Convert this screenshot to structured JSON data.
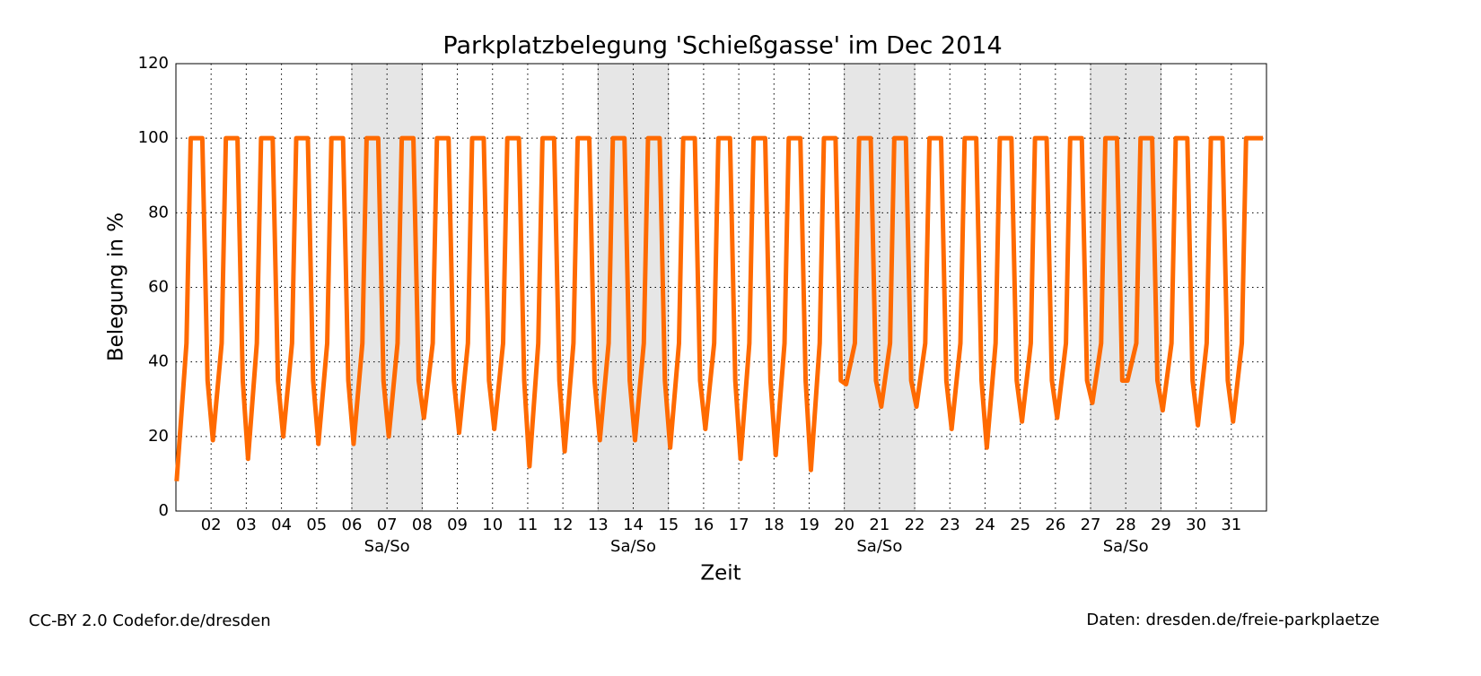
{
  "chart_data": {
    "type": "line",
    "title": "Parkplatzbelegung 'Schießgasse' im Dec 2014",
    "xlabel": "Zeit",
    "ylabel": "Belegung in %",
    "footer_left": "CC-BY 2.0 Codefor.de/dresden",
    "footer_right": "Daten: dresden.de/freie-parkplaetze",
    "xlim": [
      1,
      32
    ],
    "ylim": [
      0,
      120
    ],
    "grid": true,
    "yticks": [
      0,
      20,
      40,
      60,
      80,
      100,
      120
    ],
    "xticks": [
      {
        "value": 2,
        "label": "02"
      },
      {
        "value": 3,
        "label": "03"
      },
      {
        "value": 4,
        "label": "04"
      },
      {
        "value": 5,
        "label": "05"
      },
      {
        "value": 6,
        "label": "06"
      },
      {
        "value": 7,
        "label": "07"
      },
      {
        "value": 8,
        "label": "08"
      },
      {
        "value": 9,
        "label": "09"
      },
      {
        "value": 10,
        "label": "10"
      },
      {
        "value": 11,
        "label": "11"
      },
      {
        "value": 12,
        "label": "12"
      },
      {
        "value": 13,
        "label": "13"
      },
      {
        "value": 14,
        "label": "14"
      },
      {
        "value": 15,
        "label": "15"
      },
      {
        "value": 16,
        "label": "16"
      },
      {
        "value": 17,
        "label": "17"
      },
      {
        "value": 18,
        "label": "18"
      },
      {
        "value": 19,
        "label": "19"
      },
      {
        "value": 20,
        "label": "20"
      },
      {
        "value": 21,
        "label": "21"
      },
      {
        "value": 22,
        "label": "22"
      },
      {
        "value": 23,
        "label": "23"
      },
      {
        "value": 24,
        "label": "24"
      },
      {
        "value": 25,
        "label": "25"
      },
      {
        "value": 26,
        "label": "26"
      },
      {
        "value": 27,
        "label": "27"
      },
      {
        "value": 28,
        "label": "28"
      },
      {
        "value": 29,
        "label": "29"
      },
      {
        "value": 30,
        "label": "30"
      },
      {
        "value": 31,
        "label": "31"
      }
    ],
    "weekends": [
      {
        "start": 6,
        "end": 8,
        "label": "Sa/So"
      },
      {
        "start": 13,
        "end": 15,
        "label": "Sa/So"
      },
      {
        "start": 20,
        "end": 22,
        "label": "Sa/So"
      },
      {
        "start": 27,
        "end": 29,
        "label": "Sa/So"
      }
    ],
    "weekend_color": "#e6e6e6",
    "x": [
      1.02,
      1.3,
      1.42,
      1.75,
      1.9,
      2.05,
      2.3,
      2.42,
      2.75,
      2.9,
      3.05,
      3.3,
      3.42,
      3.75,
      3.9,
      4.05,
      4.3,
      4.42,
      4.75,
      4.9,
      5.05,
      5.3,
      5.42,
      5.75,
      5.9,
      6.05,
      6.3,
      6.42,
      6.75,
      6.9,
      7.05,
      7.3,
      7.42,
      7.75,
      7.9,
      8.05,
      8.3,
      8.42,
      8.75,
      8.9,
      9.05,
      9.3,
      9.42,
      9.75,
      9.9,
      10.05,
      10.3,
      10.42,
      10.75,
      10.9,
      11.05,
      11.3,
      11.42,
      11.75,
      11.9,
      12.05,
      12.3,
      12.42,
      12.75,
      12.9,
      13.05,
      13.3,
      13.42,
      13.75,
      13.9,
      14.05,
      14.3,
      14.42,
      14.75,
      14.9,
      15.05,
      15.3,
      15.42,
      15.75,
      15.9,
      16.05,
      16.3,
      16.42,
      16.75,
      16.9,
      17.05,
      17.3,
      17.42,
      17.75,
      17.9,
      18.05,
      18.3,
      18.42,
      18.75,
      18.9,
      19.05,
      19.3,
      19.42,
      19.75,
      19.9,
      20.05,
      20.3,
      20.42,
      20.75,
      20.9,
      21.05,
      21.3,
      21.42,
      21.75,
      21.9,
      22.05,
      22.3,
      22.42,
      22.75,
      22.9,
      23.05,
      23.3,
      23.42,
      23.75,
      23.9,
      24.05,
      24.3,
      24.42,
      24.75,
      24.9,
      25.05,
      25.3,
      25.42,
      25.75,
      25.9,
      26.05,
      26.3,
      26.42,
      26.75,
      26.9,
      27.05,
      27.3,
      27.42,
      27.75,
      27.9,
      28.05,
      28.3,
      28.42,
      28.75,
      28.9,
      29.05,
      29.3,
      29.42,
      29.75,
      29.9,
      30.05,
      30.3,
      30.42,
      30.75,
      30.9,
      31.05,
      31.3,
      31.42,
      31.75,
      31.9
    ],
    "series": [
      {
        "name": "Belegung",
        "color": "#ff6a00",
        "values": [
          8,
          45,
          100,
          100,
          35,
          19,
          45,
          100,
          100,
          35,
          14,
          45,
          100,
          100,
          35,
          20,
          45,
          100,
          100,
          35,
          18,
          45,
          100,
          100,
          35,
          18,
          45,
          100,
          100,
          35,
          20,
          45,
          100,
          100,
          35,
          25,
          45,
          100,
          100,
          35,
          21,
          45,
          100,
          100,
          35,
          22,
          45,
          100,
          100,
          35,
          12,
          45,
          100,
          100,
          35,
          16,
          45,
          100,
          100,
          35,
          19,
          45,
          100,
          100,
          35,
          19,
          45,
          100,
          100,
          35,
          17,
          45,
          100,
          100,
          35,
          22,
          45,
          100,
          100,
          35,
          14,
          45,
          100,
          100,
          35,
          15,
          45,
          100,
          100,
          35,
          11,
          45,
          100,
          100,
          35,
          34,
          45,
          100,
          100,
          35,
          28,
          45,
          100,
          100,
          35,
          28,
          45,
          100,
          100,
          35,
          22,
          45,
          100,
          100,
          35,
          17,
          45,
          100,
          100,
          35,
          24,
          45,
          100,
          100,
          35,
          25,
          45,
          100,
          100,
          35,
          29,
          45,
          100,
          100,
          35,
          35,
          45,
          100,
          100,
          35,
          27,
          45,
          100,
          100,
          35,
          23,
          45,
          100,
          100,
          35,
          24,
          45,
          100,
          100,
          100
        ]
      }
    ]
  }
}
